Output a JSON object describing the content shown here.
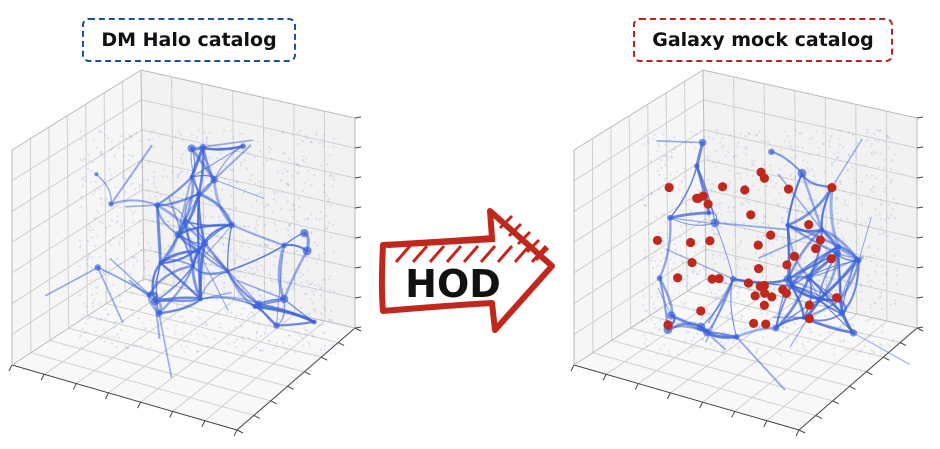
{
  "left_panel": {
    "title": "DM Halo catalog",
    "border_color": "#1a4fa3"
  },
  "right_panel": {
    "title": "Galaxy mock catalog",
    "border_color": "#b3261e"
  },
  "arrow": {
    "label": "HOD",
    "stroke_color": "#c0281d"
  },
  "colors": {
    "halo_points": "#3d63d8",
    "galaxy_points": "#c0281d",
    "pane_fill": "#f2f2f2",
    "grid_line": "#d0d0d0"
  },
  "galaxy_count": 44
}
